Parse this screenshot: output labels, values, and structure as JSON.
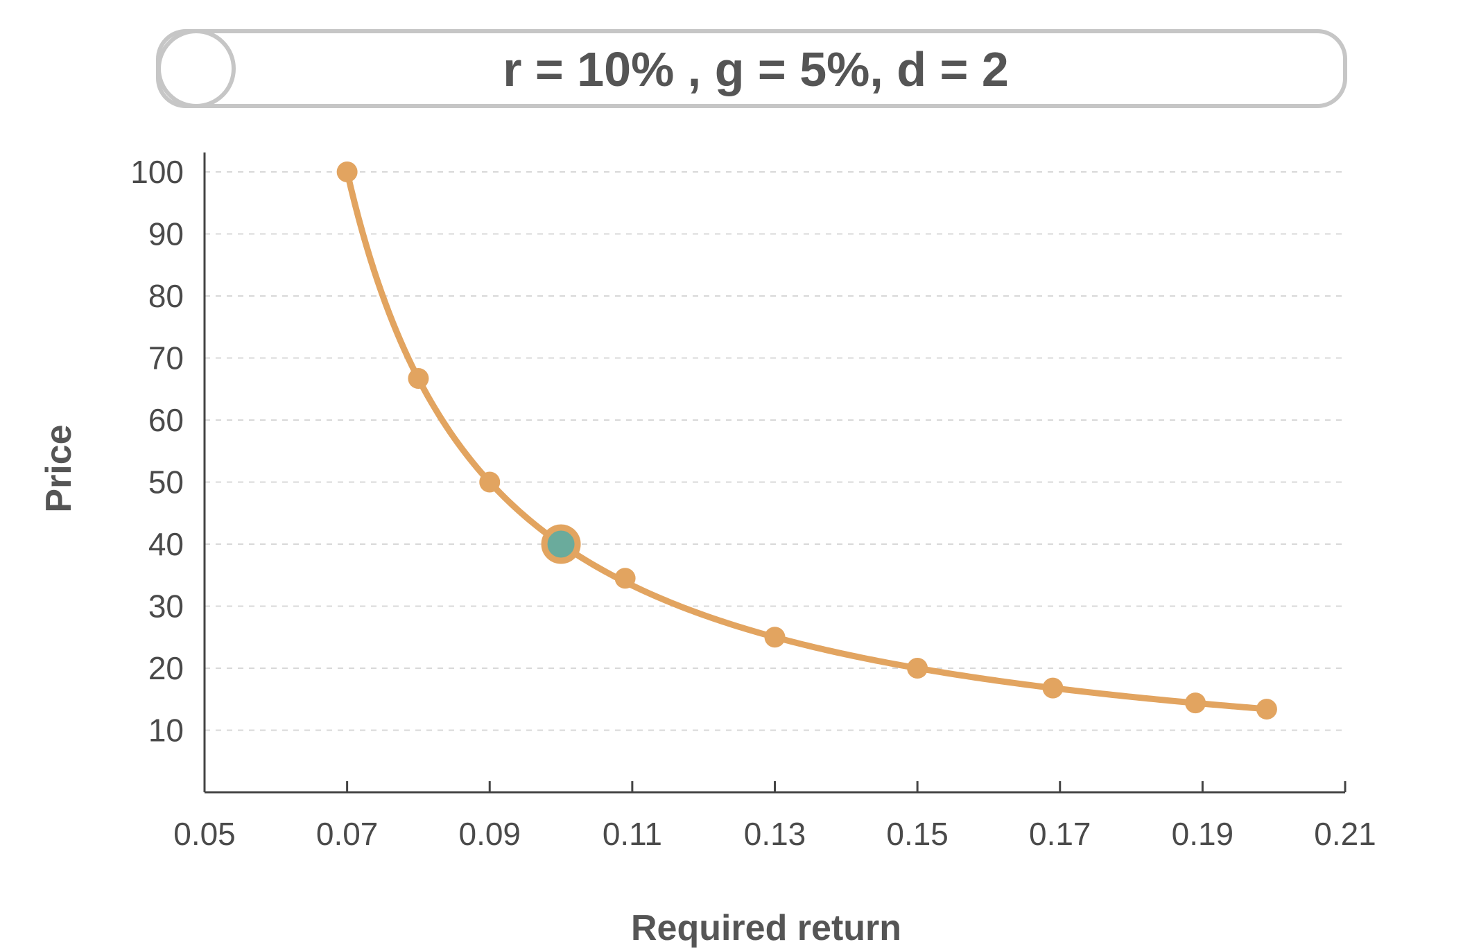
{
  "slider": {
    "label": "r = 10% , g = 5%, d = 2",
    "value": 0.1
  },
  "chart_data": {
    "type": "line",
    "title": "",
    "xlabel": "Required return",
    "ylabel": "Price",
    "xlim": [
      0.05,
      0.21
    ],
    "ylim": [
      0,
      100
    ],
    "x_ticks": [
      "0.05",
      "0.07",
      "0.09",
      "0.11",
      "0.13",
      "0.15",
      "0.17",
      "0.19",
      "0.21"
    ],
    "y_ticks": [
      "10",
      "20",
      "30",
      "40",
      "50",
      "60",
      "70",
      "80",
      "90",
      "100"
    ],
    "grid": "horizontal-dashed",
    "curve": "2 / (x - 0.05)",
    "series": [
      {
        "points": [
          {
            "x": 0.07,
            "y": 100
          },
          {
            "x": 0.08,
            "y": 66.7
          },
          {
            "x": 0.09,
            "y": 50
          },
          {
            "x": 0.109,
            "y": 34.5
          },
          {
            "x": 0.13,
            "y": 25
          },
          {
            "x": 0.15,
            "y": 20
          },
          {
            "x": 0.169,
            "y": 16.8
          },
          {
            "x": 0.189,
            "y": 14.4
          },
          {
            "x": 0.199,
            "y": 13.4
          }
        ]
      }
    ],
    "highlight": {
      "x": 0.1,
      "y": 40
    },
    "colors": {
      "line": "#e2a460",
      "highlight": "#6aab9c",
      "axis": "#444444",
      "grid": "#d8d8d8"
    }
  }
}
